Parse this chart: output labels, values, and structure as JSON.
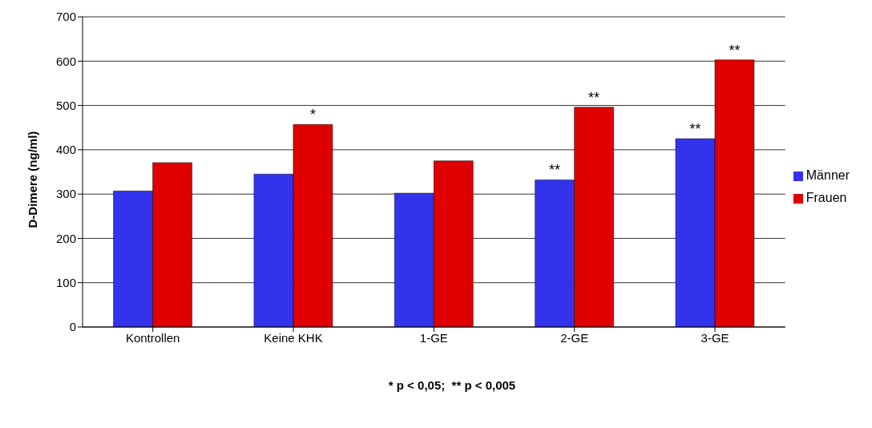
{
  "chart_data": {
    "type": "bar",
    "ylabel": "D-Dimere (ng/ml)",
    "categories": [
      "Kontrollen",
      "Keine KHK",
      "1-GE",
      "2-GE",
      "3-GE"
    ],
    "series": [
      {
        "name": "Männer",
        "color": "#3333ee",
        "values": [
          307,
          345,
          302,
          332,
          425
        ]
      },
      {
        "name": "Frauen",
        "color": "#e00000",
        "values": [
          371,
          457,
          375,
          496,
          603
        ]
      }
    ],
    "ylim": [
      0,
      700
    ],
    "yticks": [
      0,
      100,
      200,
      300,
      400,
      500,
      600,
      700
    ],
    "grid": "y",
    "legend": "right",
    "annotations": [
      {
        "text": "*",
        "x": "Keine KHK",
        "y": 457
      },
      {
        "text": "**",
        "x": "2-GE",
        "y": 332
      },
      {
        "text": "**",
        "x": "2-GE",
        "y": 496
      },
      {
        "text": "**",
        "x": "3-GE",
        "y": 425
      },
      {
        "text": "**",
        "x": "3-GE",
        "y": 603
      },
      "* p < 0,05;  ** p < 0,005"
    ]
  }
}
